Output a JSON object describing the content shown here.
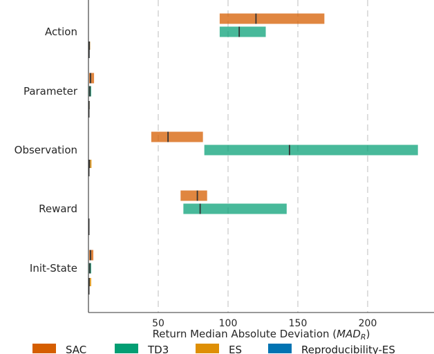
{
  "chart_data": {
    "type": "bar",
    "orientation": "horizontal",
    "subtype": "range-with-median",
    "categories": [
      "Action",
      "Parameter",
      "Observation",
      "Reward",
      "Init-State"
    ],
    "xlabel": "Return Median Absolute Deviation",
    "xlabel_math": "MAD",
    "xlabel_math_sub": "R",
    "xlim": [
      0,
      240
    ],
    "xticks": [
      50,
      100,
      150,
      200
    ],
    "grid": "vertical-dashed",
    "legend_position": "bottom",
    "series": [
      {
        "name": "SAC",
        "color": "#d55e00",
        "ranges": [
          [
            94,
            169
          ],
          [
            0.5,
            4
          ],
          [
            45,
            82
          ],
          [
            66,
            85
          ],
          [
            0.5,
            3.5
          ]
        ],
        "medians": [
          120,
          1.5,
          57,
          78,
          1.5
        ]
      },
      {
        "name": "TD3",
        "color": "#029e73",
        "ranges": [
          [
            94,
            127
          ],
          [
            0.3,
            2
          ],
          [
            83,
            236
          ],
          [
            68,
            142
          ],
          [
            0.3,
            2
          ]
        ],
        "medians": [
          108,
          1,
          144,
          80,
          1
        ]
      },
      {
        "name": "ES",
        "color": "#de8f05",
        "ranges": [
          [
            0.3,
            1.2
          ],
          [
            0.2,
            0.8
          ],
          [
            0.2,
            2.2
          ],
          [
            0.1,
            0.6
          ],
          [
            0.3,
            2
          ]
        ],
        "medians": [
          0.6,
          0.4,
          0.7,
          0.3,
          0.5
        ]
      },
      {
        "name": "Reproducibility-ES",
        "color": "#0173b2",
        "ranges": [
          [
            0.2,
            0.7
          ],
          [
            0.1,
            0.5
          ],
          [
            0.1,
            0.6
          ],
          [
            0.1,
            0.5
          ],
          [
            0.1,
            0.5
          ]
        ],
        "medians": [
          0.4,
          0.3,
          0.3,
          0.3,
          0.3
        ]
      }
    ]
  }
}
